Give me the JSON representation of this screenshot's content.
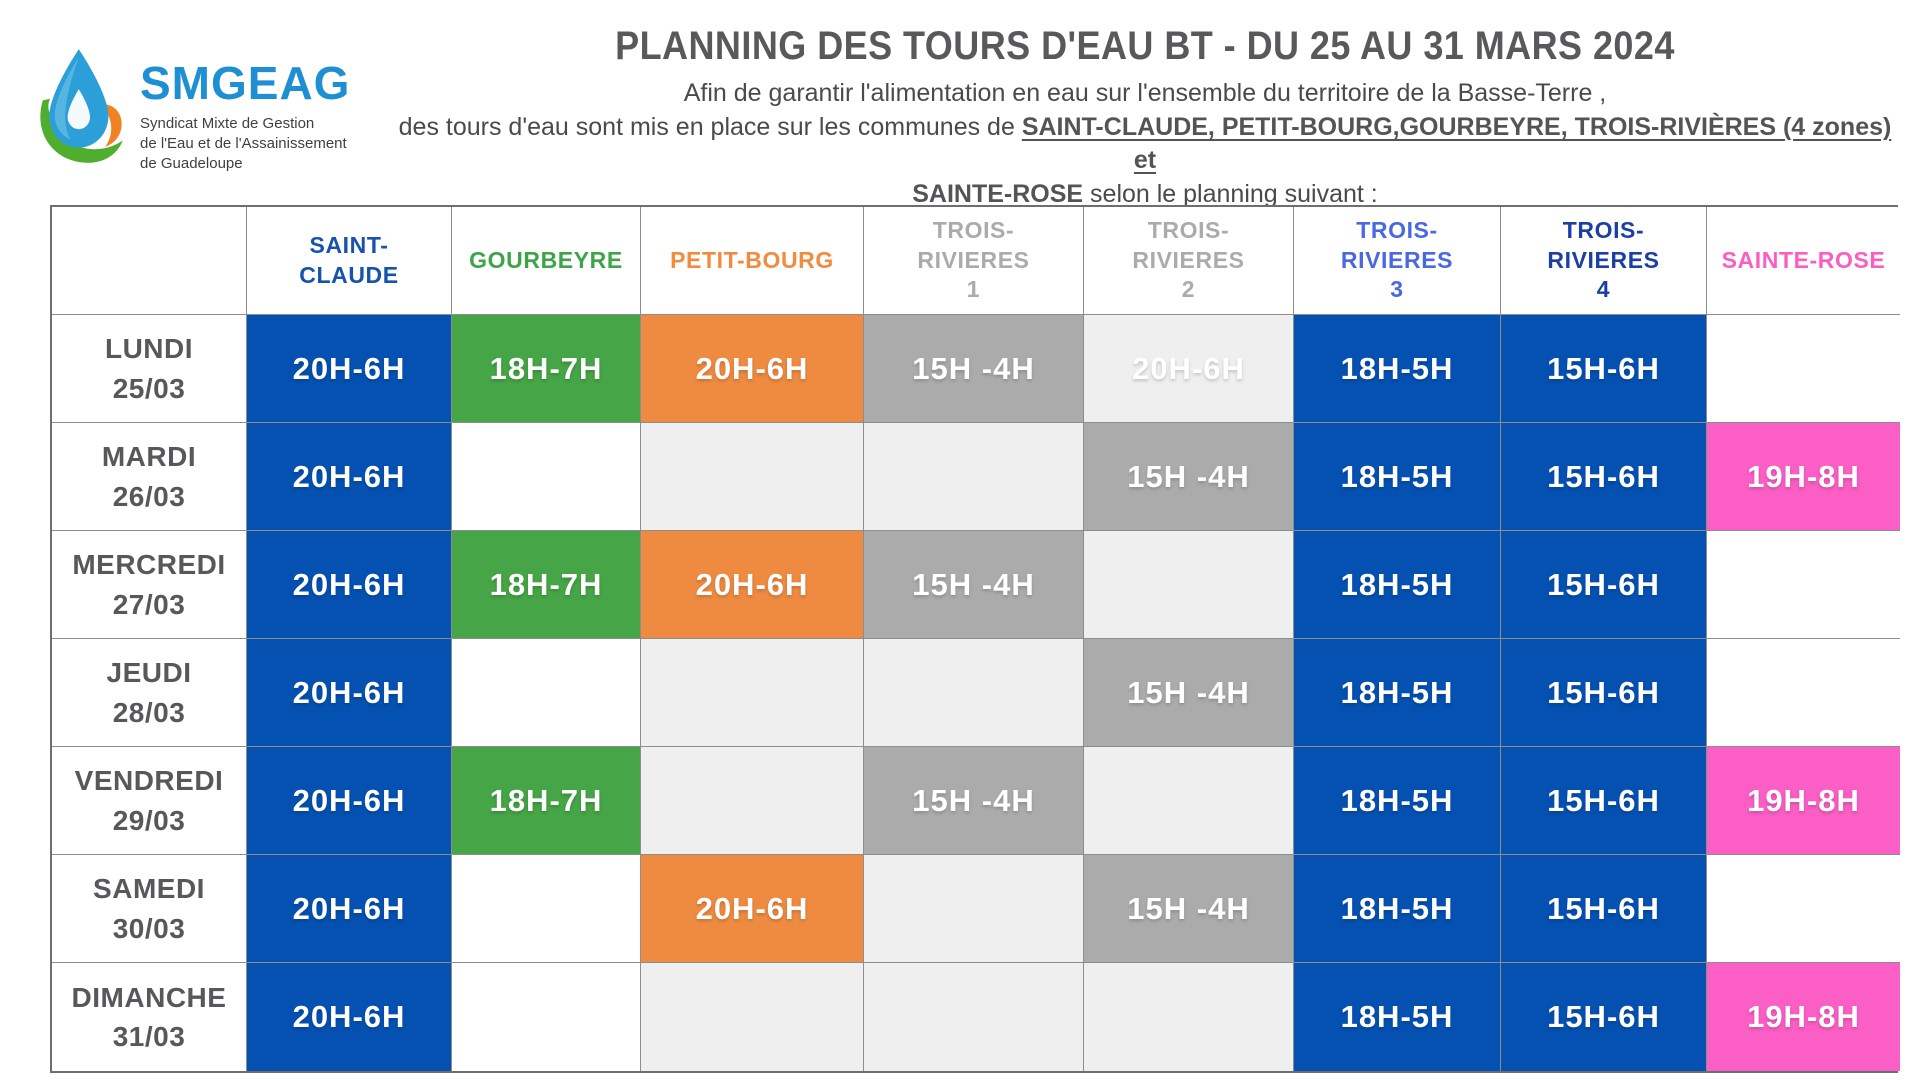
{
  "logo": {
    "brand": "SMGEAG",
    "sub_line1": "Syndicat Mixte de Gestion",
    "sub_line2": "de l'Eau et de l'Assainissement",
    "sub_line3": "de Guadeloupe"
  },
  "header": {
    "title": "PLANNING DES TOURS D'EAU BT - DU 25 AU 31 MARS 2024"
  },
  "intro": {
    "line1": "Afin de garantir l'alimentation en eau sur l'ensemble du territoire de la Basse-Terre ,",
    "line2_normal": "des tours d'eau sont mis en place sur les communes de ",
    "line2_strong": "SAINT-CLAUDE, PETIT-BOURG,GOURBEYRE, TROIS-RIVIÈRES (4 zones) et",
    "line3_strong": "SAINTE-ROSE",
    "line3_normal": " selon le planning suivant :"
  },
  "table": {
    "columns": [
      {
        "key": "days",
        "lines": [],
        "color": "#58585A"
      },
      {
        "key": "saint-claude",
        "lines": [
          "SAINT-",
          "CLAUDE"
        ],
        "color": "#1553AD"
      },
      {
        "key": "gourbeyre",
        "lines": [
          "GOURBEYRE"
        ],
        "color": "#3EA44A"
      },
      {
        "key": "petit-bourg",
        "lines": [
          "PETIT-BOURG"
        ],
        "color": "#F28B3E"
      },
      {
        "key": "trois-rivieres-1",
        "lines": [
          "TROIS-",
          "RIVIERES",
          "1"
        ],
        "color": "#ABABAB"
      },
      {
        "key": "trois-rivieres-2",
        "lines": [
          "TROIS-",
          "RIVIERES",
          "2"
        ],
        "color": "#ABABAB"
      },
      {
        "key": "trois-rivieres-3",
        "lines": [
          "TROIS-",
          "RIVIERES",
          "3"
        ],
        "color": "#4968E2"
      },
      {
        "key": "trois-rivieres-4",
        "lines": [
          "TROIS-",
          "RIVIERES",
          "4"
        ],
        "color": "#1B3FA5"
      },
      {
        "key": "sainte-rose",
        "lines": [
          "SAINTE-ROSE"
        ],
        "color": "#FB5EC0"
      }
    ],
    "cell_colors": {
      "blue": "#0551B2",
      "green": "#46A546",
      "orange": "#EE8B41",
      "gray": "#ABABAB",
      "lightgray": "#EFEFEF",
      "white": "#FFFFFF",
      "pink": "#FB5EC5"
    },
    "rows": [
      {
        "day": "LUNDI",
        "date": "25/03",
        "cells": [
          {
            "t": "20H-6H",
            "bg": "blue"
          },
          {
            "t": "18H-7H",
            "bg": "green"
          },
          {
            "t": "20H-6H",
            "bg": "orange"
          },
          {
            "t": "15H -4H",
            "bg": "gray"
          },
          {
            "t": "20H-6H",
            "bg": "lightgray"
          },
          {
            "t": "18H-5H",
            "bg": "blue"
          },
          {
            "t": "15H-6H",
            "bg": "blue"
          },
          {
            "t": "",
            "bg": "white"
          }
        ]
      },
      {
        "day": "MARDI",
        "date": "26/03",
        "cells": [
          {
            "t": "20H-6H",
            "bg": "blue"
          },
          {
            "t": "",
            "bg": "white"
          },
          {
            "t": "",
            "bg": "lightgray"
          },
          {
            "t": "",
            "bg": "lightgray"
          },
          {
            "t": "15H -4H",
            "bg": "gray"
          },
          {
            "t": "18H-5H",
            "bg": "blue"
          },
          {
            "t": "15H-6H",
            "bg": "blue"
          },
          {
            "t": "19H-8H",
            "bg": "pink"
          }
        ]
      },
      {
        "day": "MERCREDI",
        "date": "27/03",
        "cells": [
          {
            "t": "20H-6H",
            "bg": "blue"
          },
          {
            "t": "18H-7H",
            "bg": "green"
          },
          {
            "t": "20H-6H",
            "bg": "orange"
          },
          {
            "t": "15H -4H",
            "bg": "gray"
          },
          {
            "t": "",
            "bg": "lightgray"
          },
          {
            "t": "18H-5H",
            "bg": "blue"
          },
          {
            "t": "15H-6H",
            "bg": "blue"
          },
          {
            "t": "",
            "bg": "white"
          }
        ]
      },
      {
        "day": "JEUDI",
        "date": "28/03",
        "cells": [
          {
            "t": "20H-6H",
            "bg": "blue"
          },
          {
            "t": "",
            "bg": "white"
          },
          {
            "t": "",
            "bg": "lightgray"
          },
          {
            "t": "",
            "bg": "lightgray"
          },
          {
            "t": "15H -4H",
            "bg": "gray"
          },
          {
            "t": "18H-5H",
            "bg": "blue"
          },
          {
            "t": "15H-6H",
            "bg": "blue"
          },
          {
            "t": "",
            "bg": "white"
          }
        ]
      },
      {
        "day": "VENDREDI",
        "date": "29/03",
        "cells": [
          {
            "t": "20H-6H",
            "bg": "blue"
          },
          {
            "t": "18H-7H",
            "bg": "green"
          },
          {
            "t": "",
            "bg": "lightgray"
          },
          {
            "t": "15H -4H",
            "bg": "gray"
          },
          {
            "t": "",
            "bg": "lightgray"
          },
          {
            "t": "18H-5H",
            "bg": "blue"
          },
          {
            "t": "15H-6H",
            "bg": "blue"
          },
          {
            "t": "19H-8H",
            "bg": "pink"
          }
        ]
      },
      {
        "day": "SAMEDI",
        "date": "30/03",
        "cells": [
          {
            "t": "20H-6H",
            "bg": "blue"
          },
          {
            "t": "",
            "bg": "white"
          },
          {
            "t": "20H-6H",
            "bg": "orange"
          },
          {
            "t": "",
            "bg": "lightgray"
          },
          {
            "t": "15H -4H",
            "bg": "gray"
          },
          {
            "t": "18H-5H",
            "bg": "blue"
          },
          {
            "t": "15H-6H",
            "bg": "blue"
          },
          {
            "t": "",
            "bg": "white"
          }
        ]
      },
      {
        "day": "DIMANCHE",
        "date": "31/03",
        "cells": [
          {
            "t": "20H-6H",
            "bg": "blue"
          },
          {
            "t": "",
            "bg": "white"
          },
          {
            "t": "",
            "bg": "lightgray"
          },
          {
            "t": "",
            "bg": "lightgray"
          },
          {
            "t": "",
            "bg": "lightgray"
          },
          {
            "t": "18H-5H",
            "bg": "blue"
          },
          {
            "t": "15H-6H",
            "bg": "blue"
          },
          {
            "t": "19H-8H",
            "bg": "pink"
          }
        ]
      }
    ]
  }
}
